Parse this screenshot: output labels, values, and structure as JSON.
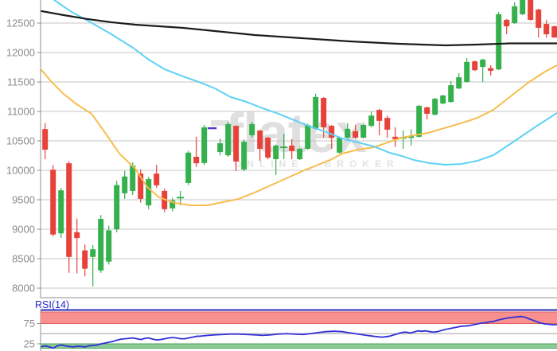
{
  "watermark": {
    "line1": "flatex",
    "line2": "ONLINE BROKER"
  },
  "colors": {
    "background": "#ffffff",
    "grid": "#c6c6c6",
    "axis": "#8f8f8f",
    "axis_text": "#8a8a8a",
    "candle_up": "#35b04c",
    "candle_down": "#e7423a",
    "ma_long_black": "#1c1c1c",
    "ma_cyan": "#5ed2f2",
    "ma_orange": "#f6bd4e",
    "rsi_line": "#3030d8",
    "rsi_panel_border": "#2a2ab8",
    "overbought_fill": "#f89090",
    "overbought_edge": "#de5f5f",
    "oversold_fill": "#8bcb95",
    "oversold_edge": "#4fa05d",
    "marker_dash": "#5a2fd0"
  },
  "chart_data": {
    "type": "candlestick",
    "y_axis": {
      "tick_labels": [
        "12500",
        "12000",
        "11500",
        "11000",
        "10500",
        "10000",
        "9500",
        "9000",
        "8500",
        "8000"
      ],
      "tick_values": [
        12500,
        12000,
        11500,
        11000,
        10500,
        10000,
        9500,
        9000,
        8500,
        8000
      ]
    },
    "candles": {
      "format": [
        "open",
        "high",
        "low",
        "close"
      ],
      "values": [
        [
          10700,
          10800,
          10190,
          10350
        ],
        [
          10010,
          10090,
          8880,
          8910
        ],
        [
          8930,
          9700,
          8850,
          9660
        ],
        [
          10120,
          10150,
          8260,
          8530
        ],
        [
          8950,
          9180,
          8250,
          8850
        ],
        [
          8640,
          8740,
          8200,
          8330
        ],
        [
          8530,
          8730,
          8030,
          8660
        ],
        [
          8300,
          9240,
          8260,
          9175
        ],
        [
          8450,
          9060,
          8400,
          8980
        ],
        [
          9000,
          9820,
          8950,
          9750
        ],
        [
          9610,
          9990,
          9515,
          9895
        ],
        [
          9650,
          10135,
          9580,
          10080
        ],
        [
          9945,
          10015,
          9450,
          9515
        ],
        [
          9405,
          9890,
          9340,
          9850
        ],
        [
          9945,
          10095,
          9700,
          9745
        ],
        [
          9650,
          9690,
          9290,
          9340
        ],
        [
          9355,
          9530,
          9300,
          9490
        ],
        [
          9530,
          9650,
          9405,
          9550
        ],
        [
          9785,
          10330,
          9750,
          10300
        ],
        [
          10230,
          10570,
          10055,
          10120
        ],
        [
          10125,
          10770,
          10090,
          10730
        ],
        null,
        [
          10310,
          10540,
          10255,
          10460
        ],
        [
          10255,
          10825,
          10230,
          10785
        ],
        [
          10755,
          10760,
          9985,
          10150
        ],
        [
          10015,
          10525,
          9985,
          10485
        ],
        [
          10595,
          10825,
          10555,
          10785
        ],
        [
          10675,
          10690,
          10160,
          10365
        ],
        [
          10555,
          10570,
          10190,
          10215
        ],
        [
          10190,
          10435,
          9920,
          10420
        ],
        [
          10395,
          10620,
          10190,
          10405
        ],
        [
          10420,
          10530,
          10190,
          10325
        ],
        [
          10190,
          10380,
          10175,
          10365
        ],
        [
          10365,
          10790,
          10350,
          10770
        ],
        [
          10705,
          11300,
          10690,
          11245
        ],
        [
          11230,
          11245,
          10555,
          10730
        ],
        [
          10755,
          10770,
          10365,
          10555
        ],
        [
          10300,
          10570,
          10285,
          10555
        ],
        [
          10555,
          10800,
          10540,
          10705
        ],
        [
          10665,
          10775,
          10540,
          10555
        ],
        [
          10555,
          10785,
          10540,
          10770
        ],
        [
          10755,
          11000,
          10730,
          10930
        ],
        [
          11025,
          11040,
          10595,
          10840
        ],
        [
          10890,
          10930,
          10555,
          10690
        ],
        [
          10570,
          10730,
          10395,
          10530
        ],
        [
          10545,
          10680,
          10365,
          10565
        ],
        [
          10550,
          10695,
          10420,
          10580
        ],
        [
          10570,
          11110,
          10555,
          11095
        ],
        [
          11070,
          11080,
          10865,
          10960
        ],
        [
          10945,
          11230,
          10930,
          11215
        ],
        [
          11135,
          11285,
          11120,
          11270
        ],
        [
          11160,
          11515,
          11150,
          11445
        ],
        [
          11390,
          11650,
          11380,
          11580
        ],
        [
          11500,
          11905,
          11490,
          11840
        ],
        [
          11850,
          11865,
          11685,
          11700
        ],
        [
          11755,
          11895,
          11500,
          11880
        ],
        [
          11735,
          11785,
          11610,
          11690
        ],
        [
          11715,
          12690,
          11700,
          12650
        ],
        [
          12555,
          12570,
          12310,
          12445
        ],
        [
          12500,
          12855,
          12485,
          12785
        ],
        [
          12650,
          12950,
          12635,
          12940
        ],
        [
          12960,
          12970,
          12540,
          12555
        ],
        [
          12730,
          12745,
          12255,
          12420
        ],
        [
          12485,
          12555,
          12255,
          12310
        ],
        [
          12445,
          12460,
          12250,
          12255
        ]
      ]
    },
    "marker": {
      "candle_index": 21,
      "price": 10715
    },
    "overlays": [
      {
        "name": "ma-long-black",
        "points": [
          [
            52,
            12703
          ],
          [
            80,
            12635
          ],
          [
            110,
            12568
          ],
          [
            140,
            12514
          ],
          [
            170,
            12473
          ],
          [
            200,
            12446
          ],
          [
            230,
            12419
          ],
          [
            260,
            12378
          ],
          [
            290,
            12338
          ],
          [
            320,
            12297
          ],
          [
            350,
            12270
          ],
          [
            380,
            12243
          ],
          [
            410,
            12216
          ],
          [
            440,
            12189
          ],
          [
            470,
            12169
          ],
          [
            500,
            12149
          ],
          [
            530,
            12135
          ],
          [
            560,
            12122
          ],
          [
            600,
            12135
          ],
          [
            640,
            12155
          ],
          [
            700,
            12155
          ]
        ]
      },
      {
        "name": "ma-cyan",
        "points": [
          [
            68,
            12892
          ],
          [
            90,
            12689
          ],
          [
            112,
            12527
          ],
          [
            140,
            12311
          ],
          [
            167,
            12081
          ],
          [
            187,
            11878
          ],
          [
            207,
            11716
          ],
          [
            230,
            11595
          ],
          [
            250,
            11500
          ],
          [
            270,
            11392
          ],
          [
            290,
            11243
          ],
          [
            310,
            11162
          ],
          [
            330,
            11054
          ],
          [
            350,
            10960
          ],
          [
            370,
            10851
          ],
          [
            390,
            10743
          ],
          [
            410,
            10649
          ],
          [
            430,
            10541
          ],
          [
            450,
            10473
          ],
          [
            470,
            10405
          ],
          [
            490,
            10297
          ],
          [
            505,
            10243
          ],
          [
            520,
            10176
          ],
          [
            540,
            10122
          ],
          [
            560,
            10095
          ],
          [
            580,
            10108
          ],
          [
            600,
            10162
          ],
          [
            620,
            10257
          ],
          [
            650,
            10527
          ],
          [
            675,
            10757
          ],
          [
            700,
            10973
          ]
        ]
      },
      {
        "name": "ma-orange",
        "points": [
          [
            52,
            11703
          ],
          [
            65,
            11500
          ],
          [
            80,
            11297
          ],
          [
            95,
            11135
          ],
          [
            115,
            10960
          ],
          [
            133,
            10622
          ],
          [
            150,
            10284
          ],
          [
            170,
            10027
          ],
          [
            185,
            9716
          ],
          [
            200,
            9541
          ],
          [
            220,
            9446
          ],
          [
            240,
            9405
          ],
          [
            260,
            9405
          ],
          [
            280,
            9459
          ],
          [
            300,
            9514
          ],
          [
            320,
            9622
          ],
          [
            340,
            9743
          ],
          [
            360,
            9865
          ],
          [
            380,
            9986
          ],
          [
            400,
            10095
          ],
          [
            417,
            10189
          ],
          [
            430,
            10284
          ],
          [
            450,
            10351
          ],
          [
            470,
            10392
          ],
          [
            490,
            10486
          ],
          [
            505,
            10554
          ],
          [
            520,
            10595
          ],
          [
            538,
            10635
          ],
          [
            555,
            10703
          ],
          [
            572,
            10770
          ],
          [
            585,
            10824
          ],
          [
            600,
            10892
          ],
          [
            620,
            11027
          ],
          [
            643,
            11270
          ],
          [
            665,
            11500
          ],
          [
            685,
            11676
          ],
          [
            700,
            11784
          ]
        ]
      }
    ],
    "rsi_panel": {
      "label": "RSI(14)",
      "period": 14,
      "overbought": 75,
      "oversold": 25,
      "tick_labels": [
        "75",
        "25"
      ],
      "series": [
        [
          52,
          18
        ],
        [
          57,
          20
        ],
        [
          62,
          17.5
        ],
        [
          67,
          14.5
        ],
        [
          72,
          20
        ],
        [
          77,
          22
        ],
        [
          82,
          20
        ],
        [
          87,
          18.5
        ],
        [
          92,
          17.5
        ],
        [
          97,
          19
        ],
        [
          102,
          18.5
        ],
        [
          107,
          17.5
        ],
        [
          112,
          20
        ],
        [
          117,
          21
        ],
        [
          122,
          22
        ],
        [
          127,
          25
        ],
        [
          132,
          27
        ],
        [
          137,
          29
        ],
        [
          142,
          31
        ],
        [
          147,
          34
        ],
        [
          152,
          36.5
        ],
        [
          157,
          37.5
        ],
        [
          162,
          38.5
        ],
        [
          167,
          39.5
        ],
        [
          172,
          37.5
        ],
        [
          177,
          35.5
        ],
        [
          182,
          38.5
        ],
        [
          187,
          39.5
        ],
        [
          192,
          36.5
        ],
        [
          197,
          34.5
        ],
        [
          202,
          35.5
        ],
        [
          207,
          37.5
        ],
        [
          212,
          39.5
        ],
        [
          217,
          40.5
        ],
        [
          222,
          39.5
        ],
        [
          227,
          37.5
        ],
        [
          232,
          37.5
        ],
        [
          237,
          39.5
        ],
        [
          242,
          41.5
        ],
        [
          247,
          43.5
        ],
        [
          252,
          44
        ],
        [
          257,
          45
        ],
        [
          262,
          46
        ],
        [
          270,
          47
        ],
        [
          280,
          48
        ],
        [
          290,
          49
        ],
        [
          300,
          49
        ],
        [
          310,
          48
        ],
        [
          320,
          47
        ],
        [
          330,
          46
        ],
        [
          340,
          47
        ],
        [
          350,
          49
        ],
        [
          360,
          50
        ],
        [
          370,
          49
        ],
        [
          380,
          48
        ],
        [
          390,
          50
        ],
        [
          400,
          53
        ],
        [
          410,
          55
        ],
        [
          420,
          56
        ],
        [
          430,
          55
        ],
        [
          440,
          52
        ],
        [
          450,
          49
        ],
        [
          460,
          46
        ],
        [
          470,
          43.5
        ],
        [
          480,
          41.5
        ],
        [
          485,
          42.5
        ],
        [
          490,
          44
        ],
        [
          495,
          47
        ],
        [
          500,
          50
        ],
        [
          505,
          53
        ],
        [
          510,
          54
        ],
        [
          515,
          52
        ],
        [
          520,
          54
        ],
        [
          525,
          57
        ],
        [
          530,
          56
        ],
        [
          535,
          57
        ],
        [
          540,
          55
        ],
        [
          545,
          54
        ],
        [
          550,
          55
        ],
        [
          555,
          58
        ],
        [
          560,
          60.5
        ],
        [
          565,
          62.5
        ],
        [
          570,
          64.5
        ],
        [
          575,
          66.5
        ],
        [
          580,
          68.5
        ],
        [
          585,
          69
        ],
        [
          590,
          70
        ],
        [
          595,
          72
        ],
        [
          600,
          74
        ],
        [
          605,
          76
        ],
        [
          610,
          77
        ],
        [
          615,
          79
        ],
        [
          620,
          80
        ],
        [
          625,
          83
        ],
        [
          630,
          85.5
        ],
        [
          635,
          87.5
        ],
        [
          640,
          89.5
        ],
        [
          645,
          90.5
        ],
        [
          650,
          91.5
        ],
        [
          655,
          92.5
        ],
        [
          660,
          90.5
        ],
        [
          665,
          86.5
        ],
        [
          670,
          83
        ],
        [
          675,
          79
        ],
        [
          680,
          76
        ],
        [
          685,
          74
        ],
        [
          690,
          73
        ],
        [
          695,
          72
        ],
        [
          700,
          72
        ]
      ]
    }
  }
}
